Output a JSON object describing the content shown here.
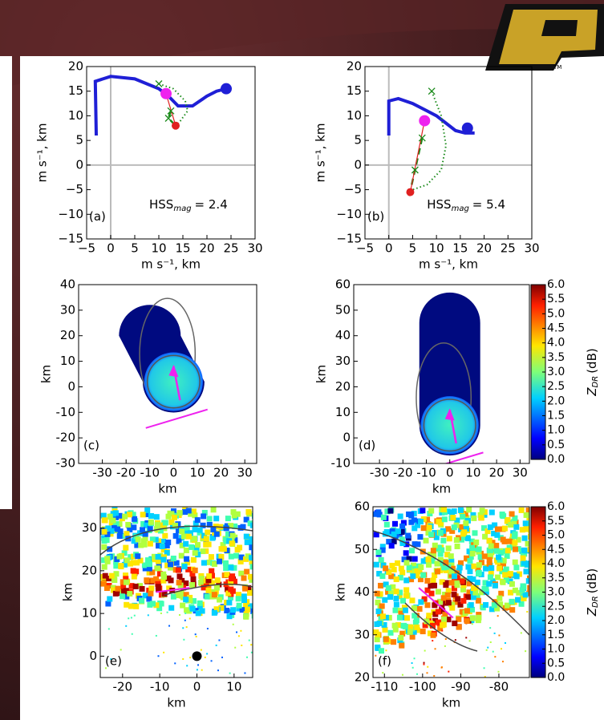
{
  "chart_data": [
    {
      "type": "hodograph",
      "panel": "(a)",
      "xlabel": "m s⁻¹, km",
      "ylabel": "m s⁻¹, km",
      "score": "HSS",
      "score_sub": "mag",
      "score_text": "= 2.4",
      "xlim": [
        -5,
        30
      ],
      "ylim": [
        -15,
        20
      ],
      "xticks": [
        {
          "value": -5,
          "label": "−5"
        },
        0,
        5,
        10,
        15,
        20,
        25,
        30
      ],
      "yticks": [
        {
          "value": -15,
          "label": "−15"
        },
        {
          "value": -10,
          "label": "−10"
        },
        {
          "value": -5,
          "label": "−5"
        },
        0,
        5,
        10,
        15,
        20
      ],
      "series": [
        {
          "style": "line",
          "color": "#1f1fd6",
          "x": [
            -3,
            -3.2,
            0,
            5,
            10,
            12,
            14,
            17,
            20,
            22,
            24
          ],
          "values": [
            6,
            17,
            18,
            17.5,
            15.5,
            14,
            12,
            12,
            14,
            15,
            15.5
          ]
        },
        {
          "style": "dotted",
          "color": "#1a8a1a",
          "x": [
            10,
            13,
            15.5,
            16,
            14.5,
            13.5
          ],
          "values": [
            16.5,
            15.5,
            13,
            11,
            9,
            8
          ]
        },
        {
          "style": "dashed",
          "color": "#1a8a1a",
          "x": [
            12.5,
            12,
            13.5
          ],
          "values": [
            11,
            9.5,
            8
          ]
        },
        {
          "style": "thin",
          "color": "#e02020",
          "x": [
            11.5,
            13.5
          ],
          "values": [
            14.5,
            8
          ]
        },
        {
          "style": "cross",
          "color": "#1a8a1a",
          "x": [
            10,
            12.5,
            12
          ],
          "values": [
            16.5,
            11,
            9.5
          ]
        },
        {
          "style": "dot",
          "color": "#1f1fd6",
          "x": [
            24
          ],
          "values": [
            15.5
          ]
        },
        {
          "style": "dot",
          "color": "#ee22ee",
          "x": [
            11.5
          ],
          "values": [
            14.5
          ]
        },
        {
          "style": "smalldot",
          "color": "#e02020",
          "x": [
            13.5
          ],
          "values": [
            8
          ]
        }
      ]
    },
    {
      "type": "hodograph",
      "panel": "(b)",
      "xlabel": "m s⁻¹, km",
      "ylabel": "m s⁻¹, km",
      "score": "HSS",
      "score_sub": "mag",
      "score_text": "= 5.4",
      "xlim": [
        -5,
        30
      ],
      "ylim": [
        -15,
        20
      ],
      "xticks": [
        {
          "value": -5,
          "label": "−5"
        },
        0,
        5,
        10,
        15,
        20,
        25,
        30
      ],
      "yticks": [
        {
          "value": -15,
          "label": "−15"
        },
        {
          "value": -10,
          "label": "−10"
        },
        {
          "value": -5,
          "label": "−5"
        },
        0,
        5,
        10,
        15,
        20
      ],
      "series": [
        {
          "style": "line",
          "color": "#1f1fd6",
          "x": [
            0,
            0,
            2,
            5,
            8,
            10,
            12,
            14,
            16,
            18
          ],
          "values": [
            6,
            13,
            13.5,
            12.5,
            11,
            10,
            8.5,
            7,
            6.5,
            6.5
          ]
        },
        {
          "style": "dotted",
          "color": "#1a8a1a",
          "x": [
            9,
            11,
            12,
            11,
            8,
            5
          ],
          "values": [
            15,
            10,
            4,
            -1,
            -4,
            -5
          ]
        },
        {
          "style": "dashed",
          "color": "#1a8a1a",
          "x": [
            7,
            5.5,
            4.8
          ],
          "values": [
            5.5,
            -1,
            -4
          ]
        },
        {
          "style": "thin",
          "color": "#e02020",
          "x": [
            7.5,
            4.5
          ],
          "values": [
            9,
            -5.5
          ]
        },
        {
          "style": "cross",
          "color": "#1a8a1a",
          "x": [
            9,
            7,
            5.5
          ],
          "values": [
            15,
            5.5,
            -1
          ]
        },
        {
          "style": "dot",
          "color": "#1f1fd6",
          "x": [
            16.5
          ],
          "values": [
            7.5
          ]
        },
        {
          "style": "dot",
          "color": "#ee22ee",
          "x": [
            7.5
          ],
          "values": [
            9
          ]
        },
        {
          "style": "smalldot",
          "color": "#e02020",
          "x": [
            4.5
          ],
          "values": [
            -5.5
          ]
        }
      ]
    },
    {
      "type": "model-field",
      "panel": "(c)",
      "xlabel": "km",
      "ylabel": "km",
      "xlim": [
        -40,
        35
      ],
      "ylim": [
        -30,
        40
      ],
      "xticks": [
        -30,
        -20,
        -10,
        0,
        10,
        20,
        30
      ],
      "yticks": [
        -30,
        -20,
        -10,
        0,
        10,
        20,
        30,
        40
      ]
    },
    {
      "type": "model-field",
      "panel": "(d)",
      "xlabel": "km",
      "ylabel": "km",
      "xlim": [
        -41,
        34
      ],
      "ylim": [
        -10,
        60
      ],
      "xticks": [
        -30,
        -20,
        -10,
        0,
        10,
        20,
        30
      ],
      "yticks": [
        -10,
        0,
        10,
        20,
        30,
        40,
        50,
        60
      ],
      "colorbar": {
        "label": "Z",
        "label_sub": "DR",
        "label_unit": "(dB)",
        "lim": [
          0,
          6
        ],
        "ticks": [
          {
            "value": 0,
            "label": "0.0"
          },
          {
            "value": 0.5,
            "label": "0.5"
          },
          {
            "value": 1,
            "label": "1.0"
          },
          {
            "value": 1.5,
            "label": "1.5"
          },
          {
            "value": 2,
            "label": "2.0"
          },
          {
            "value": 2.5,
            "label": "2.5"
          },
          {
            "value": 3,
            "label": "3.0"
          },
          {
            "value": 3.5,
            "label": "3.5"
          },
          {
            "value": 4,
            "label": "4.0"
          },
          {
            "value": 4.5,
            "label": "4.5"
          },
          {
            "value": 5,
            "label": "5.0"
          },
          {
            "value": 5.5,
            "label": "5.5"
          },
          {
            "value": 6,
            "label": "6.0"
          }
        ]
      }
    },
    {
      "type": "radar-field",
      "panel": "(e)",
      "xlabel": "km",
      "ylabel": "km",
      "xlim": [
        -26,
        15
      ],
      "ylim": [
        -5,
        35
      ],
      "xticks": [
        -20,
        -10,
        0,
        10
      ],
      "yticks": [
        0,
        10,
        20,
        30
      ]
    },
    {
      "type": "radar-field",
      "panel": "(f)",
      "xlabel": "km",
      "ylabel": "km",
      "xlim": [
        -113,
        -72
      ],
      "ylim": [
        20,
        60
      ],
      "xticks": [
        -110,
        -100,
        -90,
        -80
      ],
      "yticks": [
        20,
        30,
        40,
        50,
        60
      ],
      "colorbar": {
        "label": "Z",
        "label_sub": "DR",
        "label_unit": "(dB)",
        "lim": [
          0,
          6
        ],
        "ticks": [
          {
            "value": 0,
            "label": "0.0"
          },
          {
            "value": 0.5,
            "label": "0.5"
          },
          {
            "value": 1,
            "label": "1.0"
          },
          {
            "value": 1.5,
            "label": "1.5"
          },
          {
            "value": 2,
            "label": "2.0"
          },
          {
            "value": 2.5,
            "label": "2.5"
          },
          {
            "value": 3,
            "label": "3.0"
          },
          {
            "value": 3.5,
            "label": "3.5"
          },
          {
            "value": 4,
            "label": "4.0"
          },
          {
            "value": 4.5,
            "label": "4.5"
          },
          {
            "value": 5,
            "label": "5.0"
          },
          {
            "value": 5.5,
            "label": "5.5"
          },
          {
            "value": 6,
            "label": "6.0"
          }
        ]
      }
    }
  ]
}
